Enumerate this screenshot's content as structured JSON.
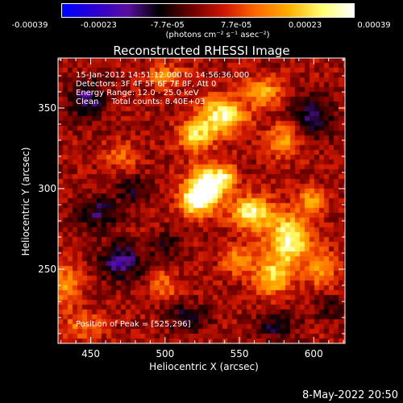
{
  "colorbar": {
    "ticks": [
      "-0.00039",
      "-0.00023",
      "-7.7e-05",
      "7.7e-05",
      "0.00023",
      "0.00039"
    ],
    "units": "(photons cm⁻² s⁻¹ asec⁻²)",
    "colors": [
      "#0000ff",
      "#2b00d0",
      "#5a10a0",
      "#000000",
      "#6e0000",
      "#d01800",
      "#ff6a00",
      "#ffb000",
      "#ffff70",
      "#ffffff"
    ]
  },
  "chart_data": {
    "type": "heatmap",
    "title": "Reconstructed RHESSI Image",
    "xlabel": "Heliocentric X (arcsec)",
    "ylabel": "Heliocentric Y (arcsec)",
    "xlim": [
      428,
      621
    ],
    "ylim": [
      204,
      381
    ],
    "zlim": [
      -0.00039,
      0.00039
    ],
    "x_ticks": [
      450,
      500,
      550,
      600
    ],
    "y_ticks": [
      250,
      300,
      350
    ],
    "peak_position": [
      525,
      296
    ],
    "sources": [
      {
        "x": 528,
        "y": 302,
        "sx": 9,
        "sy": 9,
        "amp": 0.00039
      },
      {
        "x": 520,
        "y": 292,
        "sx": 7,
        "sy": 6,
        "amp": 0.0003
      },
      {
        "x": 540,
        "y": 307,
        "sx": 5,
        "sy": 5,
        "amp": 0.0002
      },
      {
        "x": 558,
        "y": 285,
        "sx": 9,
        "sy": 7,
        "amp": 0.00034
      },
      {
        "x": 583,
        "y": 268,
        "sx": 10,
        "sy": 11,
        "amp": 0.00036
      },
      {
        "x": 572,
        "y": 245,
        "sx": 8,
        "sy": 7,
        "amp": 0.00027
      },
      {
        "x": 550,
        "y": 255,
        "sx": 7,
        "sy": 6,
        "amp": 0.0002
      },
      {
        "x": 598,
        "y": 292,
        "sx": 6,
        "sy": 6,
        "amp": 0.0002
      },
      {
        "x": 605,
        "y": 250,
        "sx": 7,
        "sy": 8,
        "amp": 0.00017
      },
      {
        "x": 538,
        "y": 345,
        "sx": 11,
        "sy": 8,
        "amp": 0.00034
      },
      {
        "x": 520,
        "y": 333,
        "sx": 8,
        "sy": 6,
        "amp": 0.00026
      },
      {
        "x": 566,
        "y": 360,
        "sx": 8,
        "sy": 6,
        "amp": 0.00022
      },
      {
        "x": 580,
        "y": 330,
        "sx": 7,
        "sy": 7,
        "amp": 0.0002
      },
      {
        "x": 500,
        "y": 370,
        "sx": 9,
        "sy": 5,
        "amp": 0.00015
      },
      {
        "x": 470,
        "y": 320,
        "sx": 8,
        "sy": 6,
        "amp": 0.00012
      },
      {
        "x": 432,
        "y": 240,
        "sx": 8,
        "sy": 10,
        "amp": 0.00018
      },
      {
        "x": 445,
        "y": 215,
        "sx": 9,
        "sy": 6,
        "amp": 0.00014
      },
      {
        "x": 500,
        "y": 240,
        "sx": 6,
        "sy": 6,
        "amp": 0.00014
      },
      {
        "x": 470,
        "y": 255,
        "sx": 10,
        "sy": 8,
        "amp": -0.00022
      },
      {
        "x": 455,
        "y": 285,
        "sx": 10,
        "sy": 7,
        "amp": -0.00016
      },
      {
        "x": 448,
        "y": 355,
        "sx": 9,
        "sy": 9,
        "amp": -0.00018
      },
      {
        "x": 478,
        "y": 300,
        "sx": 8,
        "sy": 6,
        "amp": -0.00012
      },
      {
        "x": 500,
        "y": 265,
        "sx": 7,
        "sy": 6,
        "amp": -0.00012
      },
      {
        "x": 515,
        "y": 220,
        "sx": 10,
        "sy": 6,
        "amp": -0.00014
      },
      {
        "x": 600,
        "y": 345,
        "sx": 10,
        "sy": 9,
        "amp": -0.00016
      },
      {
        "x": 575,
        "y": 215,
        "sx": 10,
        "sy": 6,
        "amp": -0.00014
      },
      {
        "x": 610,
        "y": 225,
        "sx": 6,
        "sy": 6,
        "amp": -0.0001
      }
    ]
  },
  "info": {
    "line1": "15-Jan-2012 14:51:12.000 to 14:56:36.000",
    "line2": "Detectors: 3F 4F 5F 6F 7F 8F, Att 0",
    "line3": "Energy Range: 12.0 - 25.0 keV",
    "line4": "Clean     Total counts: 8.40E+03"
  },
  "peak_label": "Position of Peak = [525,296]",
  "timestamp": "8-May-2022 20:50"
}
